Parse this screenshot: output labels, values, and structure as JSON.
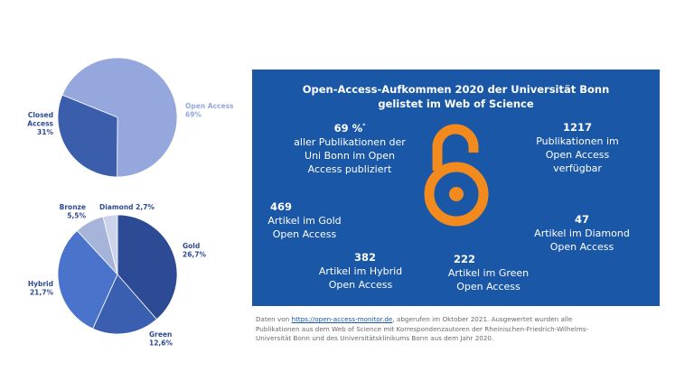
{
  "chart_data": [
    {
      "type": "pie",
      "title": "",
      "slices": [
        {
          "label": "Open Access",
          "value_text": "69%",
          "value": 69,
          "color": "#95a7dc",
          "label_color": "#95a7dc"
        },
        {
          "label": "Closed Access",
          "value_text": "31%",
          "value": 31,
          "color": "#3a5dac",
          "label_color": "#2e4a97"
        }
      ]
    },
    {
      "type": "pie",
      "title": "",
      "slices": [
        {
          "label": "Gold",
          "value_text": "26,7%",
          "value": 26.7,
          "color": "#2d4a94",
          "label_color": "#2d4a94"
        },
        {
          "label": "Green",
          "value_text": "12,6%",
          "value": 12.6,
          "color": "#3a5fb0",
          "label_color": "#2d4a94"
        },
        {
          "label": "Hybrid",
          "value_text": "21,7%",
          "value": 21.7,
          "color": "#4a73cc",
          "label_color": "#2d4a94"
        },
        {
          "label": "Bronze",
          "value_text": "5,5%",
          "value": 5.5,
          "color": "#a6b4da",
          "label_color": "#2d4a94"
        },
        {
          "label": "Diamond",
          "value_text": "2,7%",
          "value": 2.7,
          "color": "#ccd3ea",
          "label_color": "#2d4a94"
        }
      ]
    }
  ],
  "panel": {
    "title_line1": "Open-Access-Aufkommen 2020 der Universität Bonn",
    "title_line2": "gelistet im Web of Science",
    "stats": {
      "oa_share": {
        "num": "69 %",
        "sup": "*",
        "lines": [
          "aller Publikationen der",
          "Uni Bonn im Open",
          "Access publiziert"
        ]
      },
      "total": {
        "num": "1217",
        "lines": [
          "Publikationen im",
          "Open Access",
          "verfügbar"
        ]
      },
      "gold": {
        "num": "469",
        "lines": [
          "Artikel im Gold",
          "Open Access"
        ]
      },
      "diamond": {
        "num": "47",
        "lines": [
          "Artikel im Diamond",
          "Open Access"
        ]
      },
      "hybrid": {
        "num": "382",
        "lines": [
          "Artikel im Hybrid",
          "Open Access"
        ]
      },
      "green": {
        "num": "222",
        "lines": [
          "Artikel im Green",
          "Open Access"
        ]
      }
    },
    "logo_icon": "open-access-lock-icon",
    "colors": {
      "background": "#1a57a6",
      "logo": "#f28a1e",
      "text": "#ffffff"
    }
  },
  "footnote": {
    "prefix": "Daten von ",
    "link": "https://open-access-monitor.de",
    "rest1": ", abgerufen im Oktober 2021. Ausgewertet wurden alle",
    "line2": "Publikationen aus dem Web of Science mit Korrespondenzautoren der Rheinischen-Friedrich-Wilhelms-",
    "line3": "Universität Bonn und des Universitätsklinikums Bonn aus dem Jahr 2020."
  }
}
